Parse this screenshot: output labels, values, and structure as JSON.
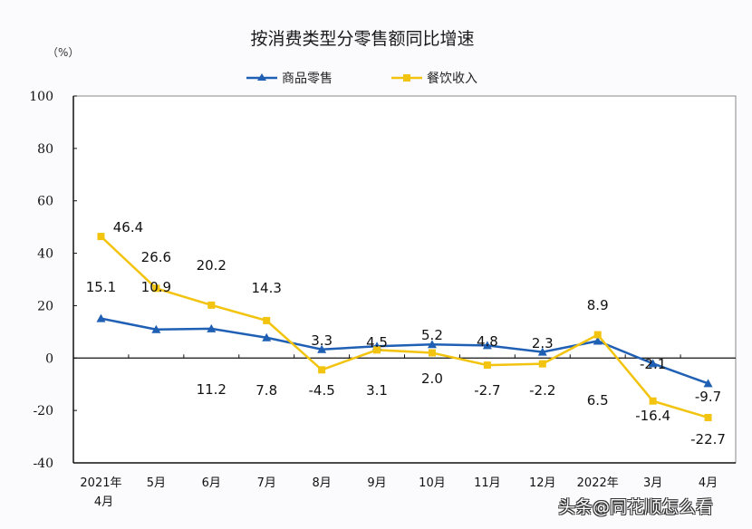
{
  "chart_data": {
    "type": "line",
    "title": "按消费类型分零售额同比增速",
    "ylabel": "（%）",
    "categories": [
      [
        "2021年",
        "4月"
      ],
      [
        "5月"
      ],
      [
        "6月"
      ],
      [
        "7月"
      ],
      [
        "8月"
      ],
      [
        "9月"
      ],
      [
        "10月"
      ],
      [
        "11月"
      ],
      [
        "12月"
      ],
      [
        "2022年"
      ],
      [
        "3月"
      ],
      [
        "4月"
      ]
    ],
    "ylim": [
      -40,
      100
    ],
    "yticks": [
      100,
      80,
      60,
      40,
      20,
      0,
      -20,
      -40
    ],
    "grid": false,
    "legend": "top-center",
    "series": [
      {
        "name": "商品零售",
        "color": "#1f5fb4",
        "marker": "triangle",
        "values": [
          15.1,
          10.9,
          11.2,
          7.8,
          3.3,
          4.5,
          5.2,
          4.8,
          2.3,
          6.5,
          -2.1,
          -9.7
        ]
      },
      {
        "name": "餐饮收入",
        "color": "#f2c40f",
        "marker": "square",
        "values": [
          46.4,
          26.6,
          20.2,
          14.3,
          -4.5,
          3.1,
          2.0,
          -2.7,
          -2.2,
          8.9,
          -16.4,
          -22.7
        ]
      }
    ]
  },
  "watermark": "头条@同花顺怎么看"
}
